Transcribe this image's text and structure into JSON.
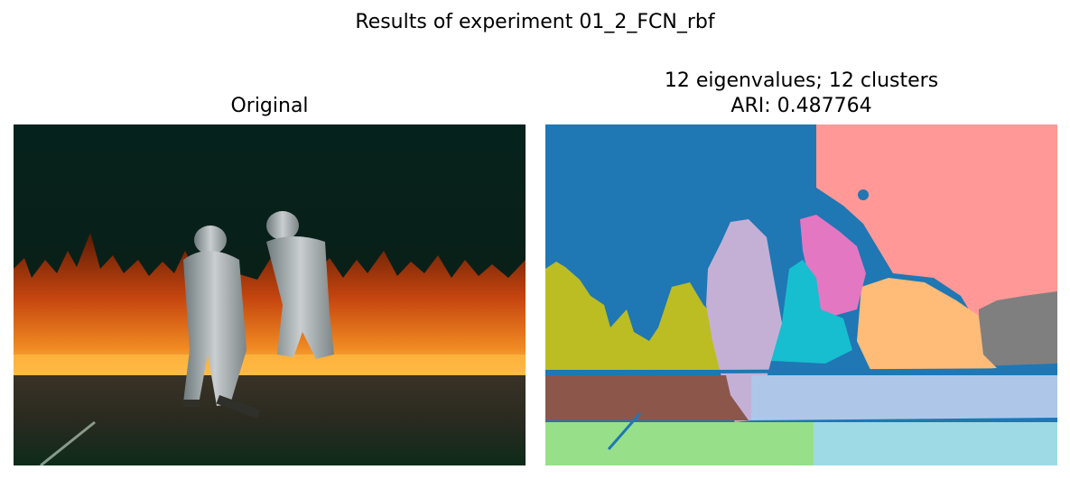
{
  "figure": {
    "suptitle": "Results of experiment 01_2_FCN_rbf"
  },
  "panels": [
    {
      "title_lines": [
        "Original"
      ],
      "content": "photo of two firefighters in silver proximity suits walking in front of a line of fire"
    },
    {
      "title_lines": [
        "12 eigenvalues; 12 clusters",
        "ARI: 0.487764"
      ],
      "content": "segmentation map with 12 colored clusters"
    }
  ],
  "colors": {
    "c_blue": "#1f77b4",
    "c_pink": "#ff9896",
    "c_lilac": "#c5b0d5",
    "c_magenta": "#e377c2",
    "c_cyan": "#17becf",
    "c_olive": "#bcbd22",
    "c_peach": "#ffbb78",
    "c_gray": "#7f7f7f",
    "c_brown": "#8c564b",
    "c_lightblue": "#aec7e8",
    "c_lightgreen": "#98df8a",
    "c_paleblue": "#9edae5"
  }
}
